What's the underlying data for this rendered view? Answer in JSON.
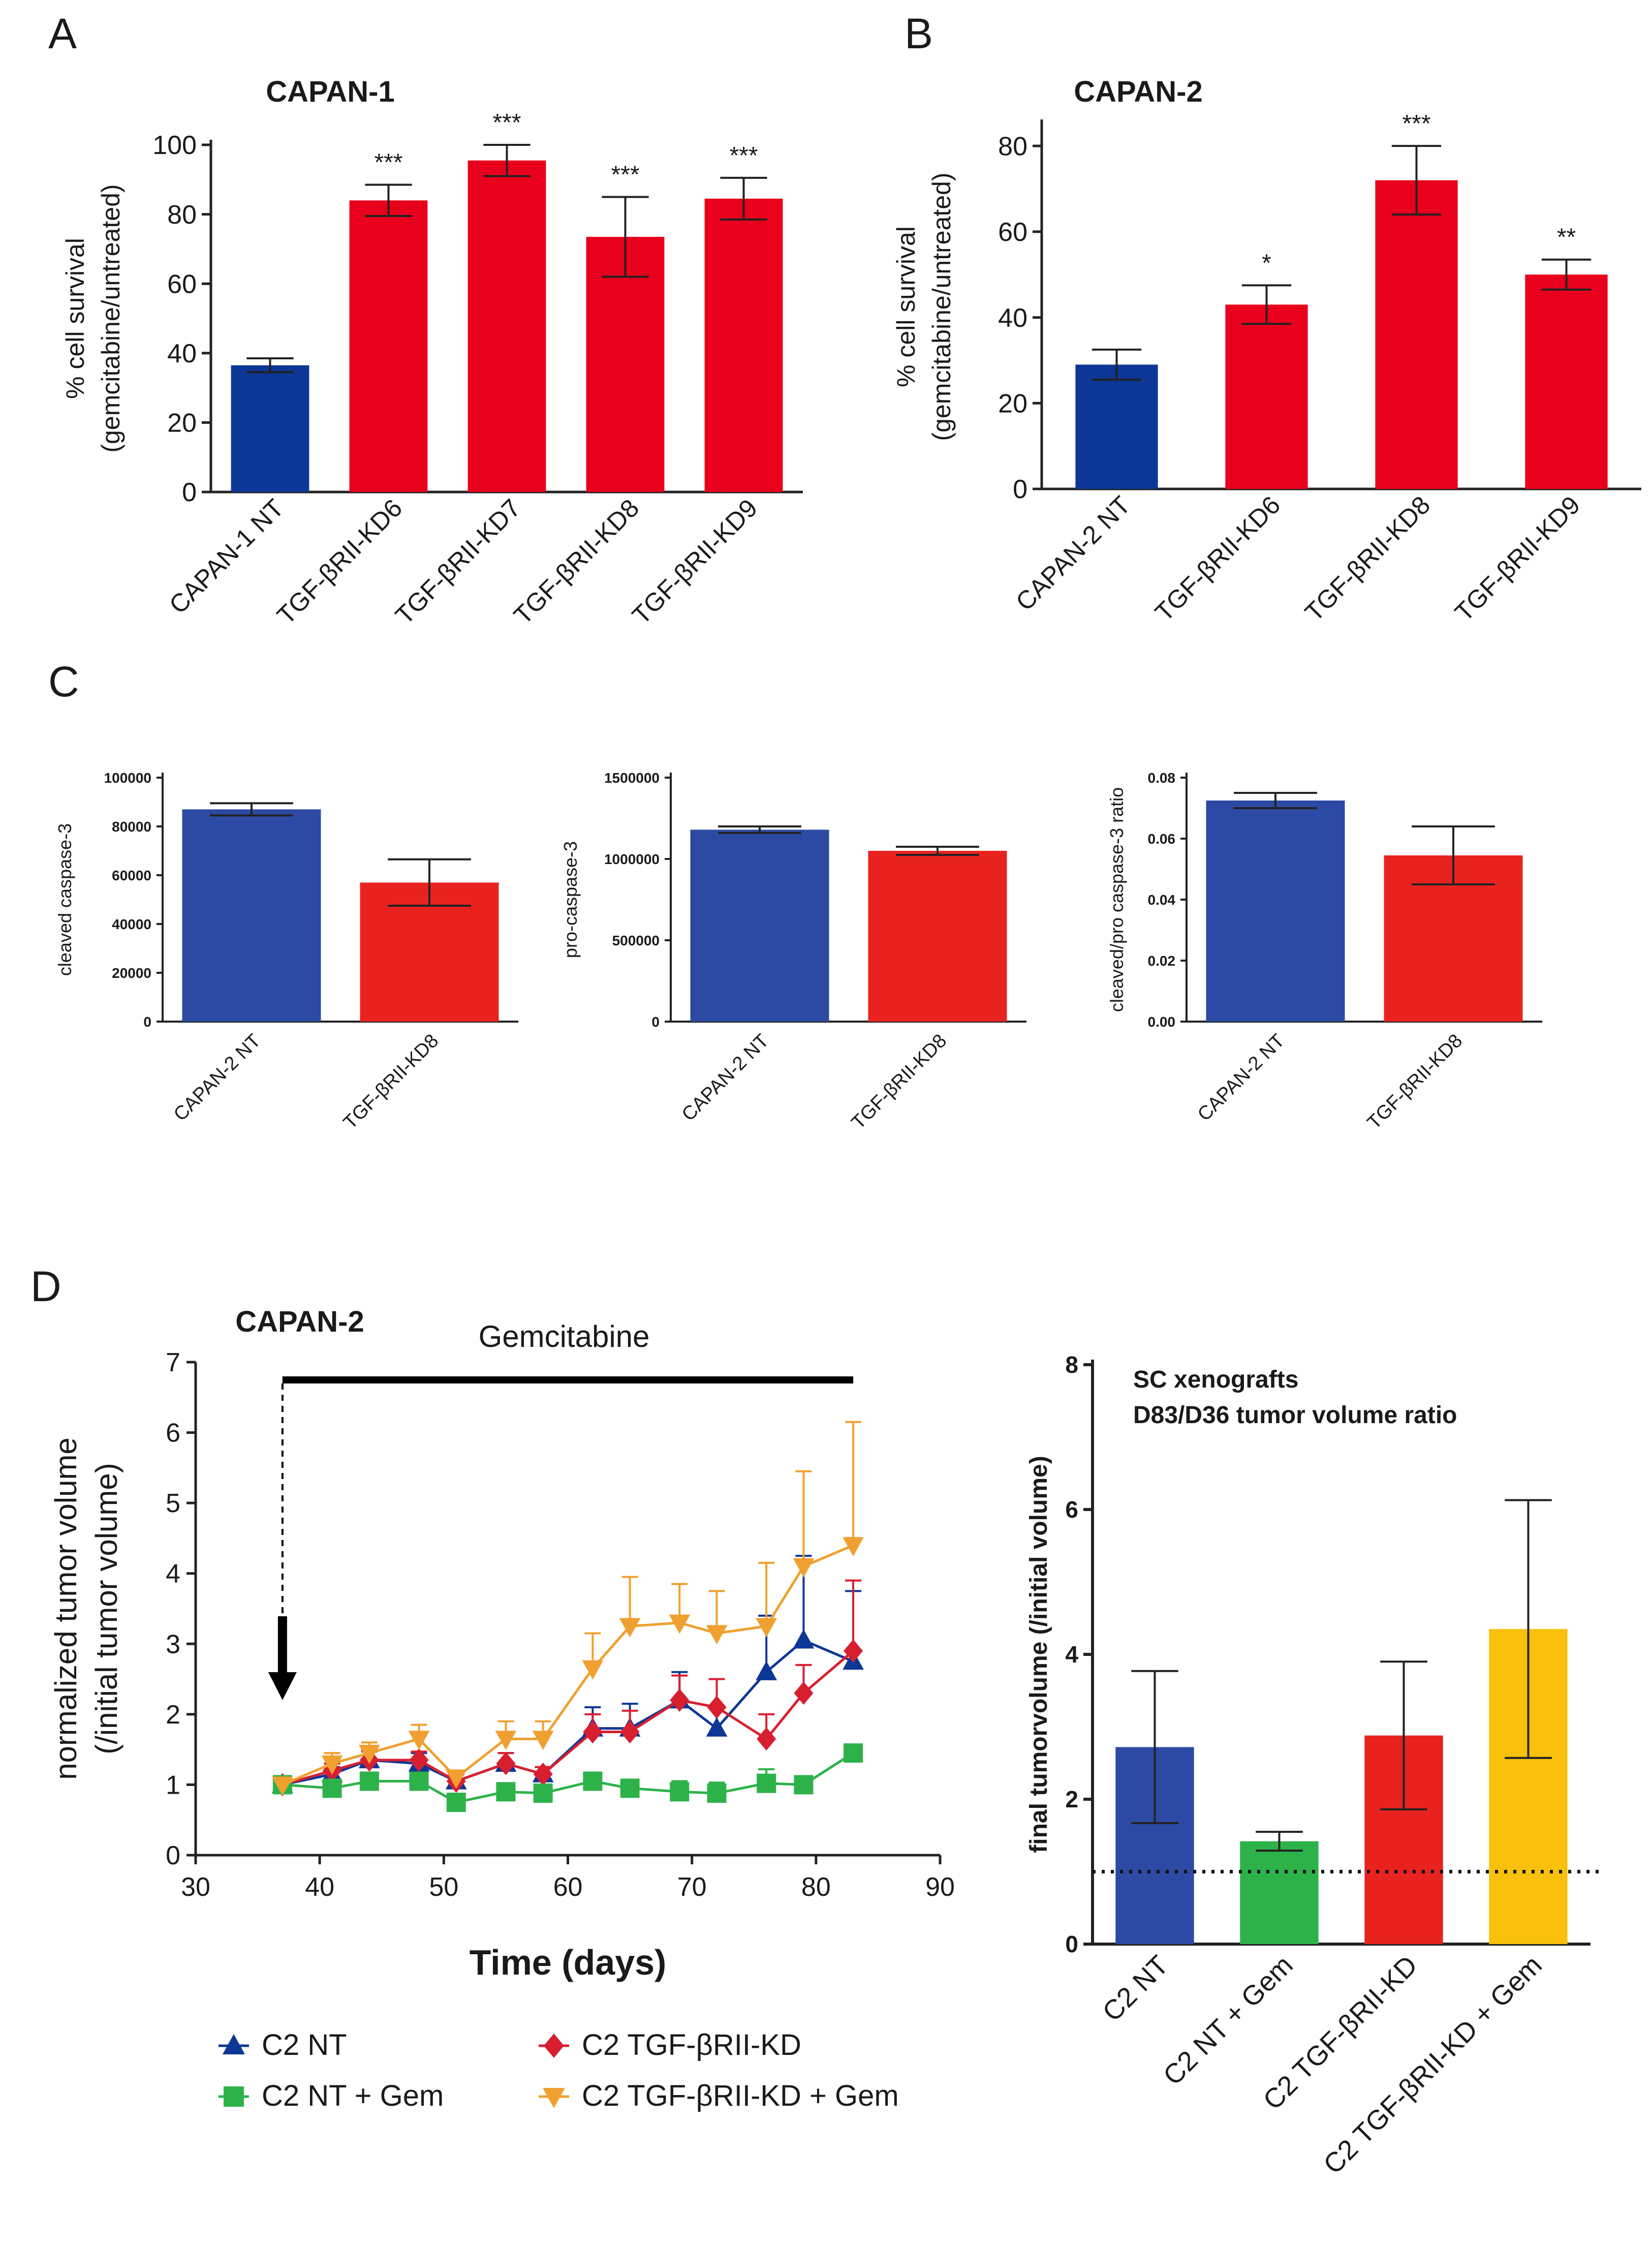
{
  "colors": {
    "blue": "#0d3796",
    "blue_c": "#2c4aa3",
    "red": "#e8001c",
    "red_c": "#e8231f",
    "green": "#2db24a",
    "orange": "#f0a030",
    "yellow": "#f9c00c",
    "darkred": "#d81f30"
  },
  "chart_data": [
    {
      "id": "A",
      "panel_label": "A",
      "type": "bar",
      "title": "CAPAN-1",
      "ylabel": [
        "% cell survival",
        "(gemcitabine/untreated)"
      ],
      "ylim": [
        0,
        100
      ],
      "yticks": [
        "0",
        "20",
        "40",
        "60",
        "80",
        "100"
      ],
      "categories": [
        "CAPAN-1 NT",
        "TGF-βRII-KD6",
        "TGF-βRII-KD7",
        "TGF-βRII-KD8",
        "TGF-βRII-KD9"
      ],
      "values": [
        36.5,
        84,
        95.5,
        73.5,
        84.5
      ],
      "errors": [
        2,
        4.5,
        4.5,
        11.5,
        6
      ],
      "significance": [
        "",
        "***",
        "***",
        "***",
        "***"
      ],
      "bar_colors": [
        "blue",
        "red",
        "red",
        "red",
        "red"
      ]
    },
    {
      "id": "B",
      "panel_label": "B",
      "type": "bar",
      "title": "CAPAN-2",
      "ylabel": [
        "% cell survival",
        "(gemcitabine/untreated)"
      ],
      "ylim": [
        0,
        85
      ],
      "yticks": [
        "0",
        "20",
        "40",
        "60",
        "80"
      ],
      "categories": [
        "CAPAN-2 NT",
        "TGF-βRII-KD6",
        "TGF-βRII-KD8",
        "TGF-βRII-KD9"
      ],
      "values": [
        29,
        43,
        72,
        50
      ],
      "errors": [
        3.5,
        4.5,
        8,
        3.5
      ],
      "significance": [
        "",
        "*",
        "***",
        "**"
      ],
      "bar_colors": [
        "blue",
        "red",
        "red",
        "red"
      ]
    },
    {
      "id": "C1",
      "panel_label": "C",
      "type": "bar",
      "title": "",
      "ylabel": [
        "cleaved caspase-3"
      ],
      "ylim": [
        0,
        100000
      ],
      "yticks": [
        "0",
        "20000",
        "40000",
        "60000",
        "80000",
        "100000"
      ],
      "categories": [
        "CAPAN-2 NT",
        "TGF-βRII-KD8"
      ],
      "values": [
        87000,
        57000
      ],
      "errors": [
        2500,
        9500
      ],
      "significance": [
        "",
        ""
      ],
      "bar_colors": [
        "blue_c",
        "red_c"
      ]
    },
    {
      "id": "C2",
      "type": "bar",
      "title": "",
      "ylabel": [
        "pro-caspase-3"
      ],
      "ylim": [
        0,
        1500000
      ],
      "yticks": [
        "0",
        "500000",
        "1000000",
        "1500000"
      ],
      "categories": [
        "CAPAN-2 NT",
        "TGF-βRII-KD8"
      ],
      "values": [
        1180000,
        1050000
      ],
      "errors": [
        20000,
        25000
      ],
      "significance": [
        "",
        ""
      ],
      "bar_colors": [
        "blue_c",
        "red_c"
      ]
    },
    {
      "id": "C3",
      "type": "bar",
      "title": "",
      "ylabel": [
        "cleaved/pro caspase-3 ratio"
      ],
      "ylim": [
        0,
        0.08
      ],
      "yticks": [
        "0.00",
        "0.02",
        "0.04",
        "0.06",
        "0.08"
      ],
      "categories": [
        "CAPAN-2 NT",
        "TGF-βRII-KD8"
      ],
      "values": [
        0.0725,
        0.0545
      ],
      "errors": [
        0.0025,
        0.0095
      ],
      "significance": [
        "",
        ""
      ],
      "bar_colors": [
        "blue_c",
        "red_c"
      ]
    },
    {
      "id": "D1",
      "panel_label": "D",
      "type": "line",
      "title": "CAPAN-2",
      "annotation": "Gemcitabine",
      "xlabel": "Time (days)",
      "ylabel": [
        "normalized tumor volume",
        "(/initial tumor volume)"
      ],
      "xlim": [
        30,
        90
      ],
      "ylim": [
        0,
        7
      ],
      "xticks": [
        "30",
        "40",
        "50",
        "60",
        "70",
        "80",
        "90"
      ],
      "yticks": [
        "0",
        "1",
        "2",
        "3",
        "4",
        "5",
        "6",
        "7"
      ],
      "treatment_start": 37,
      "treatment_end": 83,
      "series": [
        {
          "name": "C2 NT",
          "color": "blue",
          "marker": "triangle-up",
          "x": [
            37,
            41,
            44,
            48,
            51,
            55,
            58,
            62,
            65,
            69,
            72,
            76,
            79,
            83
          ],
          "y": [
            1.0,
            1.15,
            1.35,
            1.3,
            1.05,
            1.3,
            1.15,
            1.8,
            1.8,
            2.2,
            1.8,
            2.6,
            3.05,
            2.75
          ],
          "err": [
            0.05,
            0.1,
            0.15,
            0.15,
            0.1,
            0.15,
            0.1,
            0.3,
            0.35,
            0.4,
            0.3,
            0.8,
            1.2,
            1.0
          ]
        },
        {
          "name": "C2 TGF-βRII-KD",
          "color": "darkred",
          "marker": "diamond",
          "x": [
            37,
            41,
            44,
            48,
            51,
            55,
            58,
            62,
            65,
            69,
            72,
            76,
            79,
            83
          ],
          "y": [
            1.0,
            1.2,
            1.35,
            1.35,
            1.05,
            1.3,
            1.15,
            1.75,
            1.75,
            2.2,
            2.1,
            1.65,
            2.3,
            2.9
          ],
          "err": [
            0.05,
            0.1,
            0.12,
            0.12,
            0.1,
            0.15,
            0.1,
            0.25,
            0.3,
            0.35,
            0.4,
            0.35,
            0.4,
            1.0
          ]
        },
        {
          "name": "C2 NT + Gem",
          "color": "green",
          "marker": "square",
          "x": [
            37,
            41,
            44,
            48,
            51,
            55,
            58,
            62,
            65,
            69,
            72,
            76,
            79,
            83
          ],
          "y": [
            1.0,
            0.95,
            1.05,
            1.05,
            0.75,
            0.9,
            0.88,
            1.05,
            0.95,
            0.9,
            0.88,
            1.02,
            1.0,
            1.45
          ],
          "err": [
            0.05,
            0.08,
            0.1,
            0.1,
            0.1,
            0.12,
            0.1,
            0.1,
            0.1,
            0.15,
            0.15,
            0.2,
            0.1,
            0.12
          ]
        },
        {
          "name": "C2 TGF-βRII-KD + Gem",
          "color": "orange",
          "marker": "triangle-down",
          "x": [
            37,
            41,
            44,
            48,
            51,
            55,
            58,
            62,
            65,
            69,
            72,
            76,
            79,
            83
          ],
          "y": [
            1.0,
            1.3,
            1.45,
            1.65,
            1.1,
            1.65,
            1.65,
            2.65,
            3.25,
            3.3,
            3.15,
            3.25,
            4.1,
            4.4
          ],
          "err": [
            0.05,
            0.15,
            0.15,
            0.2,
            0.1,
            0.25,
            0.25,
            0.5,
            0.7,
            0.55,
            0.6,
            0.9,
            1.35,
            1.75
          ]
        }
      ],
      "legend": [
        {
          "label": "C2 NT",
          "color": "blue",
          "marker": "triangle-up"
        },
        {
          "label": "C2 NT + Gem",
          "color": "green",
          "marker": "square"
        },
        {
          "label": "C2 TGF-βRII-KD",
          "color": "darkred",
          "marker": "diamond"
        },
        {
          "label": "C2 TGF-βRII-KD + Gem",
          "color": "orange",
          "marker": "triangle-down"
        }
      ]
    },
    {
      "id": "D2",
      "type": "bar",
      "title": [
        "SC xenografts",
        "D83/D36 tumor volume ratio"
      ],
      "ylabel": [
        "final tumorvolume (/initial volume)"
      ],
      "ylim": [
        0,
        8
      ],
      "yticks": [
        "0",
        "2",
        "4",
        "6",
        "8"
      ],
      "reference_line": 1,
      "categories": [
        "C2 NT",
        "C2 NT + Gem",
        "C2 TGF-βRII-KD",
        "C2 TGF-βRII-KD + Gem"
      ],
      "values": [
        2.72,
        1.42,
        2.88,
        4.35
      ],
      "errors": [
        1.05,
        0.13,
        1.02,
        1.78
      ],
      "significance": [
        "",
        "",
        "",
        ""
      ],
      "bar_colors": [
        "blue_c",
        "green",
        "red_c",
        "yellow"
      ]
    }
  ]
}
